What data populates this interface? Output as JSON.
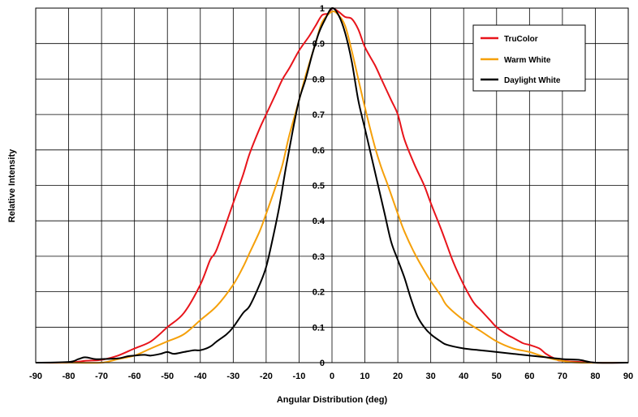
{
  "chart_data": {
    "type": "line",
    "title": "",
    "xlabel": "Angular Distribution (deg)",
    "ylabel": "Relative Intensity",
    "xlim": [
      -90,
      90
    ],
    "ylim": [
      0,
      1
    ],
    "xticks": [
      -90,
      -80,
      -70,
      -60,
      -50,
      -40,
      -30,
      -20,
      -10,
      0,
      10,
      20,
      30,
      40,
      50,
      60,
      70,
      80,
      90
    ],
    "yticks": [
      0,
      0.1,
      0.2,
      0.3,
      0.4,
      0.5,
      0.6,
      0.7,
      0.8,
      0.9,
      1
    ],
    "grid": true,
    "legend_position": "top-right",
    "series": [
      {
        "name": "TruColor",
        "color": "#e8141b",
        "points": [
          [
            -90,
            0
          ],
          [
            -80,
            0
          ],
          [
            -75,
            0.005
          ],
          [
            -70,
            0.008
          ],
          [
            -65,
            0.02
          ],
          [
            -60,
            0.04
          ],
          [
            -55,
            0.06
          ],
          [
            -50,
            0.1
          ],
          [
            -45,
            0.14
          ],
          [
            -40,
            0.22
          ],
          [
            -37,
            0.29
          ],
          [
            -35,
            0.32
          ],
          [
            -30,
            0.45
          ],
          [
            -27,
            0.53
          ],
          [
            -25,
            0.59
          ],
          [
            -22,
            0.66
          ],
          [
            -20,
            0.7
          ],
          [
            -17,
            0.76
          ],
          [
            -15,
            0.8
          ],
          [
            -13,
            0.83
          ],
          [
            -10,
            0.88
          ],
          [
            -7,
            0.92
          ],
          [
            -5,
            0.95
          ],
          [
            -3,
            0.98
          ],
          [
            -1,
            0.985
          ],
          [
            0,
            1
          ],
          [
            2,
            0.99
          ],
          [
            4,
            0.975
          ],
          [
            6,
            0.97
          ],
          [
            8,
            0.94
          ],
          [
            10,
            0.89
          ],
          [
            13,
            0.84
          ],
          [
            15,
            0.8
          ],
          [
            18,
            0.74
          ],
          [
            20,
            0.7
          ],
          [
            22,
            0.63
          ],
          [
            25,
            0.56
          ],
          [
            28,
            0.5
          ],
          [
            30,
            0.45
          ],
          [
            33,
            0.38
          ],
          [
            35,
            0.33
          ],
          [
            37,
            0.28
          ],
          [
            40,
            0.22
          ],
          [
            43,
            0.17
          ],
          [
            45,
            0.15
          ],
          [
            48,
            0.12
          ],
          [
            50,
            0.1
          ],
          [
            53,
            0.08
          ],
          [
            55,
            0.07
          ],
          [
            58,
            0.055
          ],
          [
            60,
            0.05
          ],
          [
            63,
            0.04
          ],
          [
            65,
            0.025
          ],
          [
            68,
            0.01
          ],
          [
            70,
            0.005
          ],
          [
            80,
            0
          ],
          [
            90,
            0
          ]
        ]
      },
      {
        "name": "Warm White",
        "color": "#f5a00a",
        "points": [
          [
            -90,
            0
          ],
          [
            -80,
            0
          ],
          [
            -70,
            0
          ],
          [
            -65,
            0.01
          ],
          [
            -60,
            0.02
          ],
          [
            -55,
            0.04
          ],
          [
            -50,
            0.06
          ],
          [
            -45,
            0.08
          ],
          [
            -40,
            0.12
          ],
          [
            -35,
            0.16
          ],
          [
            -30,
            0.22
          ],
          [
            -27,
            0.27
          ],
          [
            -25,
            0.31
          ],
          [
            -22,
            0.37
          ],
          [
            -20,
            0.42
          ],
          [
            -17,
            0.5
          ],
          [
            -15,
            0.56
          ],
          [
            -13,
            0.64
          ],
          [
            -10,
            0.74
          ],
          [
            -8,
            0.81
          ],
          [
            -5,
            0.9
          ],
          [
            -3,
            0.96
          ],
          [
            0,
            0.99
          ],
          [
            2,
            0.98
          ],
          [
            4,
            0.95
          ],
          [
            6,
            0.88
          ],
          [
            8,
            0.8
          ],
          [
            10,
            0.72
          ],
          [
            13,
            0.61
          ],
          [
            15,
            0.55
          ],
          [
            17,
            0.5
          ],
          [
            20,
            0.42
          ],
          [
            22,
            0.37
          ],
          [
            25,
            0.31
          ],
          [
            28,
            0.26
          ],
          [
            30,
            0.23
          ],
          [
            33,
            0.19
          ],
          [
            35,
            0.16
          ],
          [
            40,
            0.12
          ],
          [
            45,
            0.09
          ],
          [
            50,
            0.06
          ],
          [
            55,
            0.04
          ],
          [
            60,
            0.03
          ],
          [
            65,
            0.015
          ],
          [
            70,
            0.005
          ],
          [
            75,
            0
          ],
          [
            90,
            0
          ]
        ]
      },
      {
        "name": "Daylight White",
        "color": "#000000",
        "points": [
          [
            -90,
            0
          ],
          [
            -80,
            0.002
          ],
          [
            -77,
            0.01
          ],
          [
            -75,
            0.015
          ],
          [
            -72,
            0.01
          ],
          [
            -70,
            0.01
          ],
          [
            -65,
            0.012
          ],
          [
            -62,
            0.018
          ],
          [
            -60,
            0.02
          ],
          [
            -57,
            0.022
          ],
          [
            -55,
            0.02
          ],
          [
            -52,
            0.025
          ],
          [
            -50,
            0.03
          ],
          [
            -48,
            0.025
          ],
          [
            -45,
            0.03
          ],
          [
            -42,
            0.035
          ],
          [
            -40,
            0.035
          ],
          [
            -37,
            0.045
          ],
          [
            -35,
            0.06
          ],
          [
            -32,
            0.08
          ],
          [
            -30,
            0.1
          ],
          [
            -27,
            0.14
          ],
          [
            -25,
            0.16
          ],
          [
            -22,
            0.22
          ],
          [
            -20,
            0.27
          ],
          [
            -18,
            0.35
          ],
          [
            -16,
            0.44
          ],
          [
            -14,
            0.55
          ],
          [
            -12,
            0.65
          ],
          [
            -10,
            0.74
          ],
          [
            -8,
            0.8
          ],
          [
            -6,
            0.87
          ],
          [
            -4,
            0.93
          ],
          [
            -2,
            0.97
          ],
          [
            0,
            1
          ],
          [
            2,
            0.98
          ],
          [
            4,
            0.93
          ],
          [
            6,
            0.85
          ],
          [
            8,
            0.74
          ],
          [
            10,
            0.66
          ],
          [
            12,
            0.58
          ],
          [
            14,
            0.5
          ],
          [
            16,
            0.42
          ],
          [
            18,
            0.34
          ],
          [
            20,
            0.29
          ],
          [
            22,
            0.24
          ],
          [
            24,
            0.18
          ],
          [
            26,
            0.13
          ],
          [
            28,
            0.1
          ],
          [
            30,
            0.08
          ],
          [
            33,
            0.06
          ],
          [
            35,
            0.05
          ],
          [
            40,
            0.04
          ],
          [
            45,
            0.035
          ],
          [
            50,
            0.03
          ],
          [
            55,
            0.025
          ],
          [
            60,
            0.02
          ],
          [
            65,
            0.015
          ],
          [
            70,
            0.01
          ],
          [
            75,
            0.008
          ],
          [
            80,
            0
          ],
          [
            90,
            0
          ]
        ]
      }
    ]
  }
}
